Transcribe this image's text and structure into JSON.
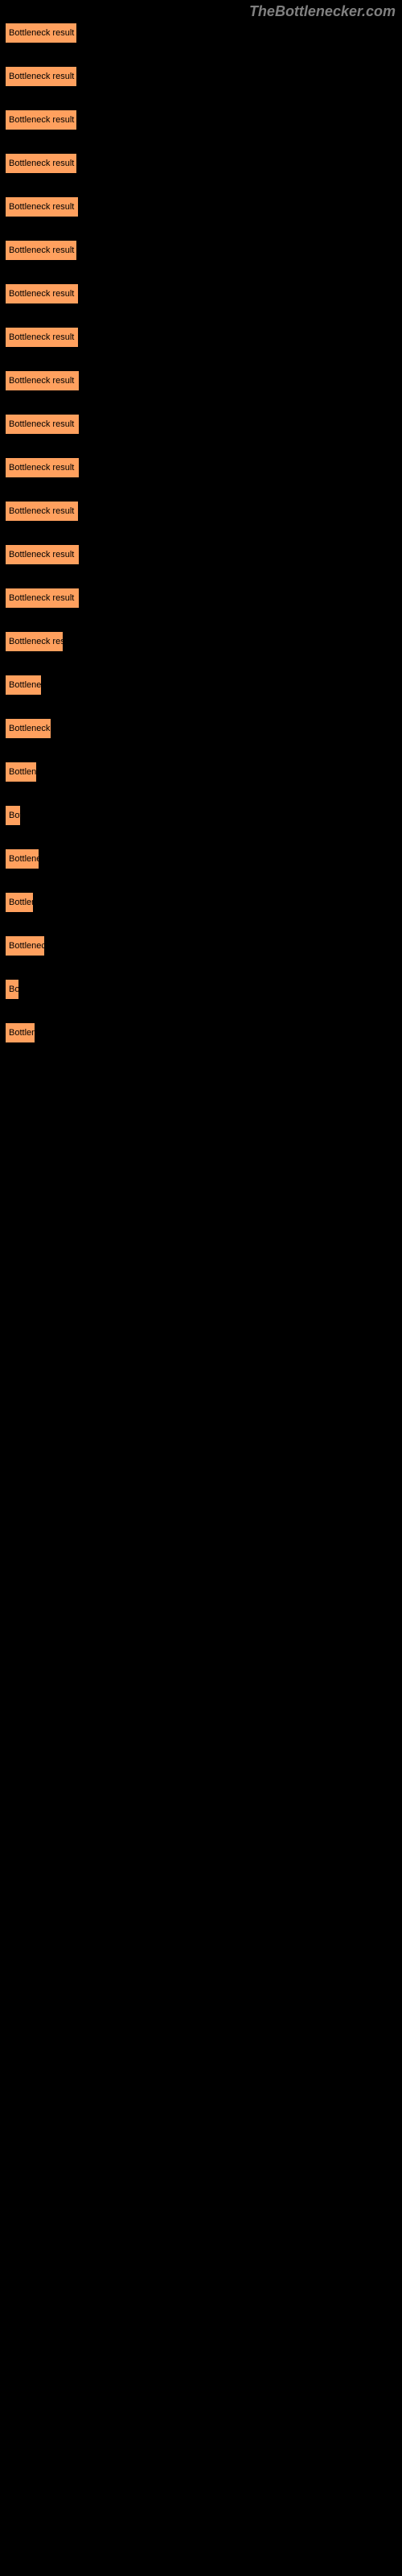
{
  "watermark": "TheBottlenecker.com",
  "results": [
    {
      "label": "Bottleneck result",
      "width": 90
    },
    {
      "label": "Bottleneck result",
      "width": 90
    },
    {
      "label": "Bottleneck result",
      "width": 90
    },
    {
      "label": "Bottleneck result",
      "width": 90
    },
    {
      "label": "Bottleneck result",
      "width": 92
    },
    {
      "label": "Bottleneck result",
      "width": 90
    },
    {
      "label": "Bottleneck result",
      "width": 92
    },
    {
      "label": "Bottleneck result",
      "width": 92
    },
    {
      "label": "Bottleneck result",
      "width": 93
    },
    {
      "label": "Bottleneck result",
      "width": 93
    },
    {
      "label": "Bottleneck result",
      "width": 93
    },
    {
      "label": "Bottleneck result",
      "width": 92
    },
    {
      "label": "Bottleneck result",
      "width": 93
    },
    {
      "label": "Bottleneck result",
      "width": 93
    },
    {
      "label": "Bottleneck result",
      "width": 73
    },
    {
      "label": "Bottleneck result",
      "width": 46
    },
    {
      "label": "Bottleneck result",
      "width": 58
    },
    {
      "label": "Bottleneck result",
      "width": 40
    },
    {
      "label": "Bottleneck result",
      "width": 20
    },
    {
      "label": "Bottleneck result",
      "width": 43
    },
    {
      "label": "Bottleneck result",
      "width": 36
    },
    {
      "label": "Bottleneck result",
      "width": 50
    },
    {
      "label": "Bottleneck result",
      "width": 18
    },
    {
      "label": "Bottleneck result",
      "width": 38
    }
  ],
  "bar_color": "#ffa05e",
  "background_color": "#000000",
  "text_color": "#000000",
  "watermark_color": "#808080"
}
